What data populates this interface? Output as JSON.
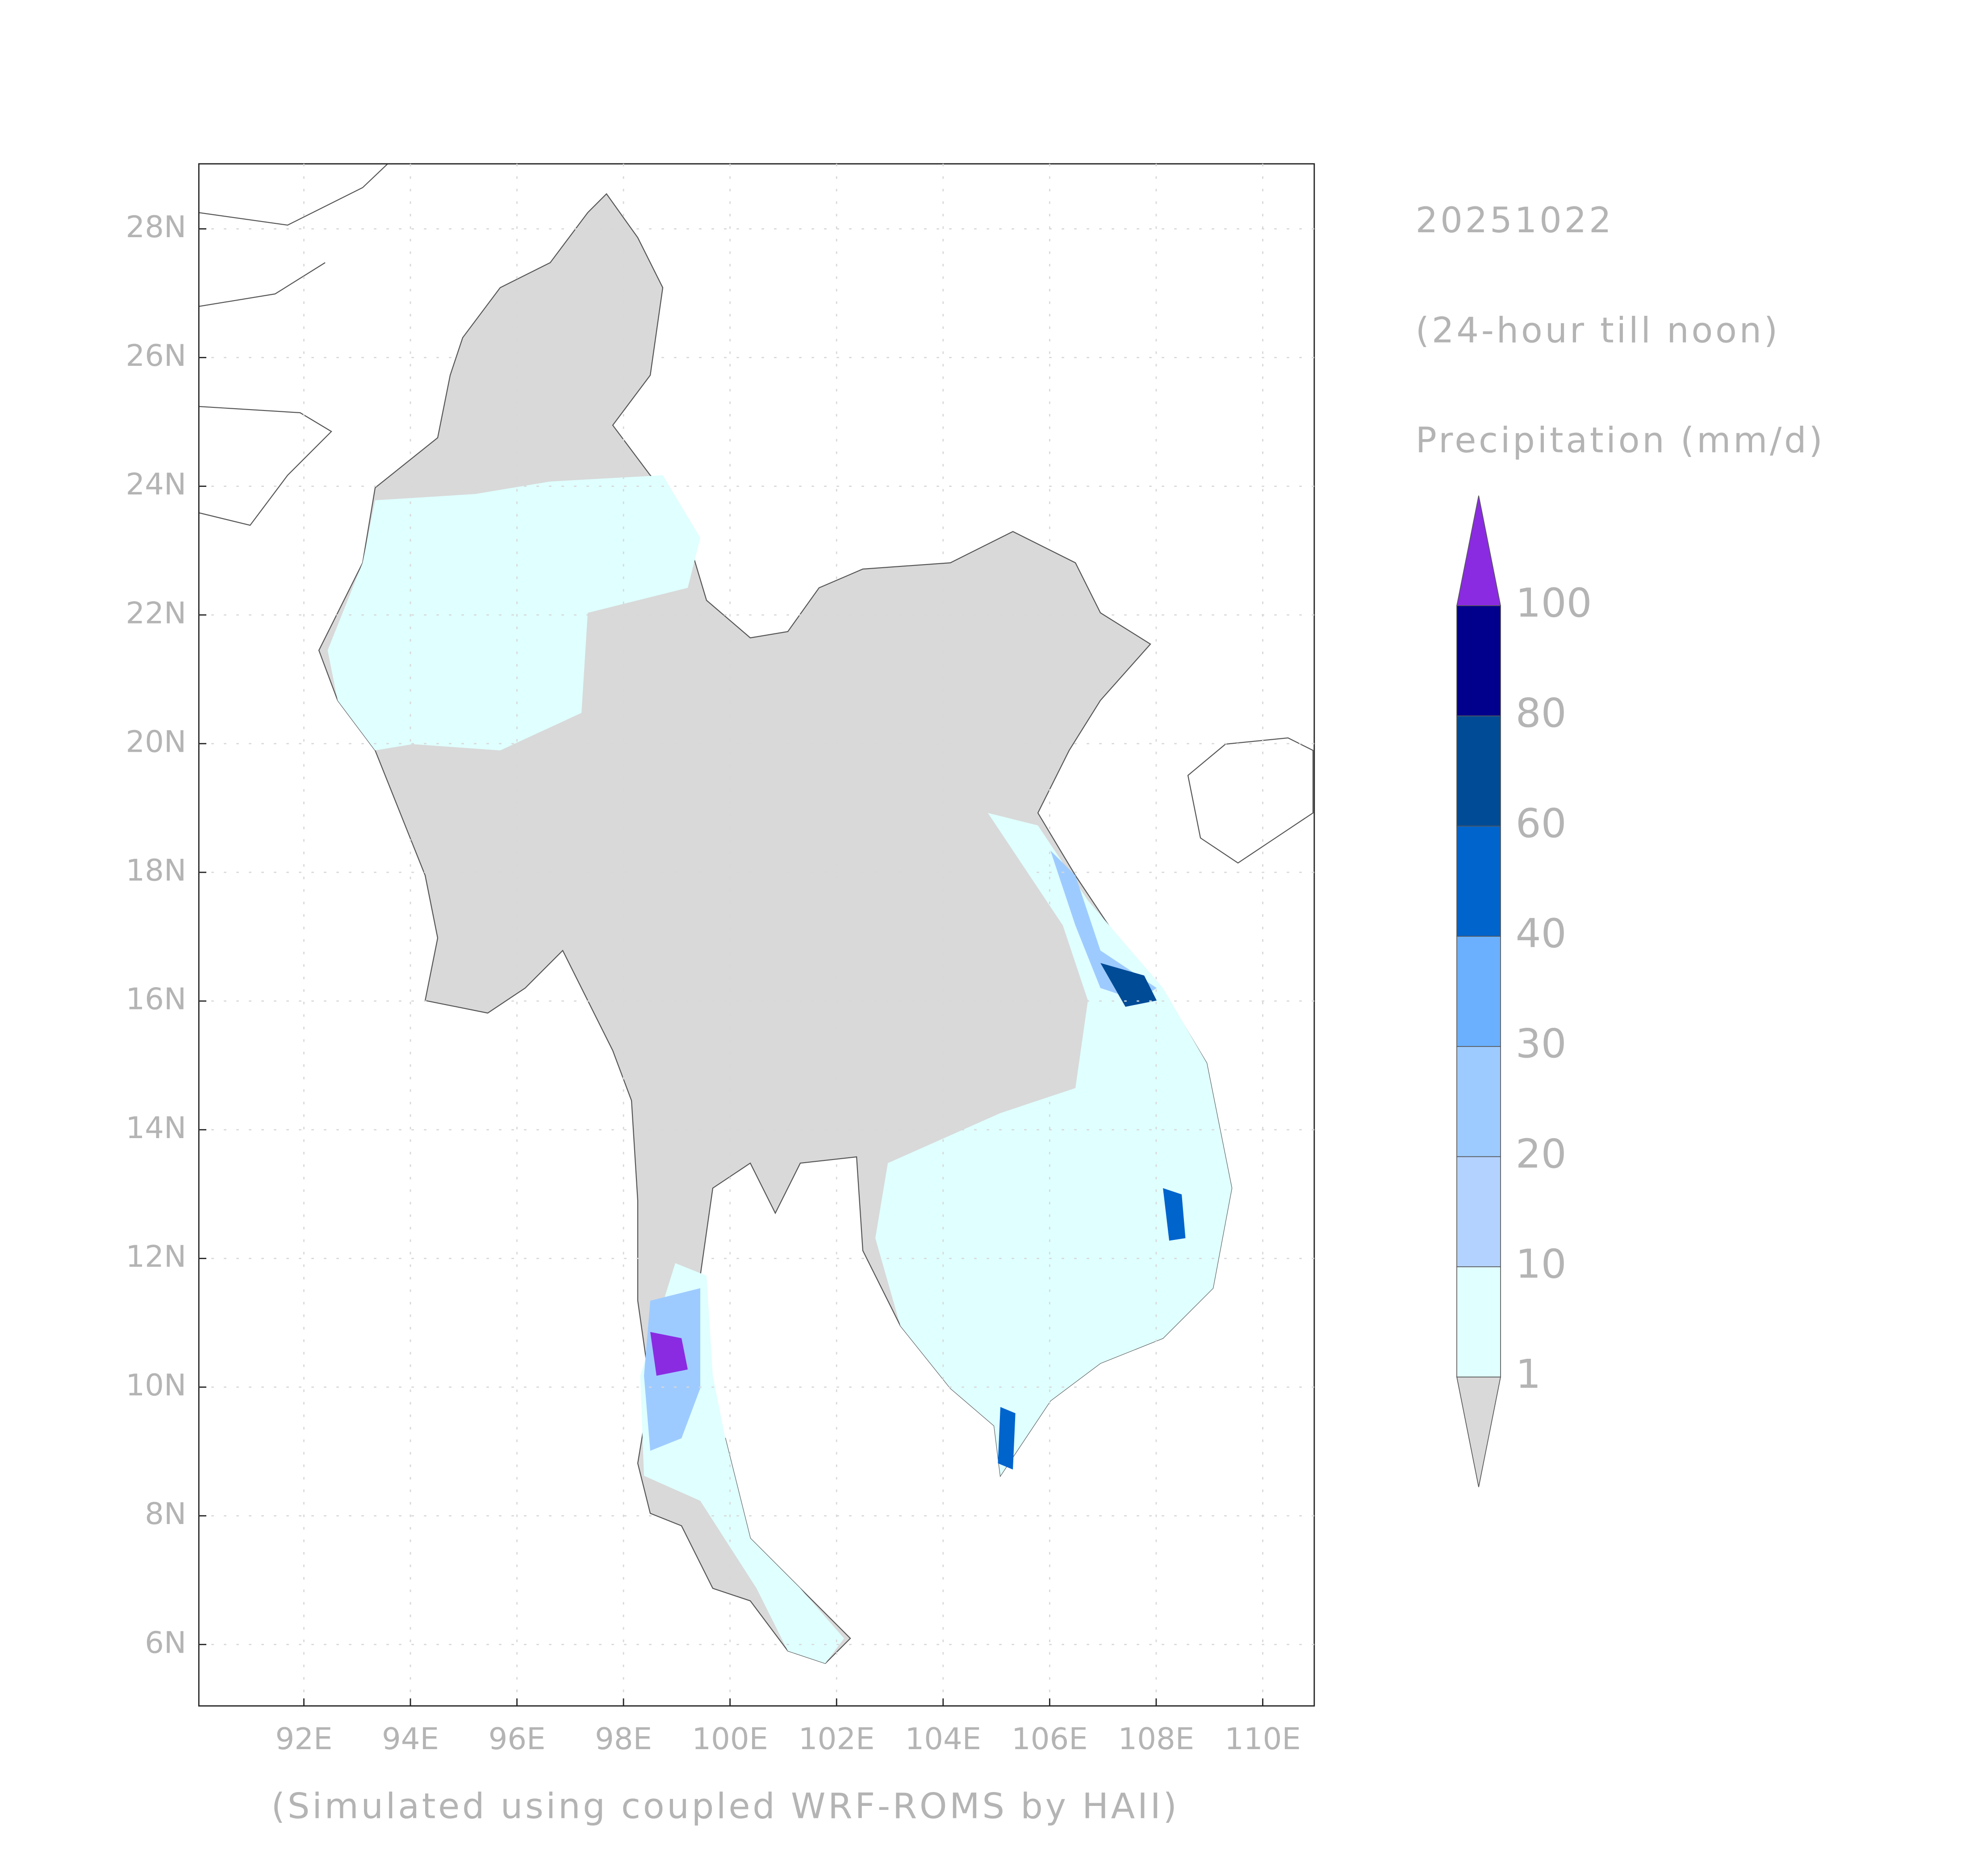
{
  "map": {
    "lat_ticks": [
      "28N",
      "26N",
      "24N",
      "22N",
      "20N",
      "18N",
      "16N",
      "14N",
      "12N",
      "10N",
      "8N",
      "6N"
    ],
    "lon_ticks": [
      "92E",
      "94E",
      "96E",
      "98E",
      "100E",
      "102E",
      "104E",
      "106E",
      "108E",
      "110E"
    ],
    "footnote": "(Simulated using coupled WRF-ROMS by HAII)"
  },
  "legend": {
    "date": "20251022",
    "period": "(24-hour till noon)",
    "title": "Precipitation (mm/d)",
    "levels": [
      1,
      10,
      20,
      30,
      40,
      60,
      80,
      100
    ],
    "colors": [
      "#d9d9d9",
      "#e0ffff",
      "#b4d2ff",
      "#9ecbff",
      "#6ab0ff",
      "#0064cd",
      "#004b96",
      "#00008c",
      "#8a2be2"
    ]
  }
}
